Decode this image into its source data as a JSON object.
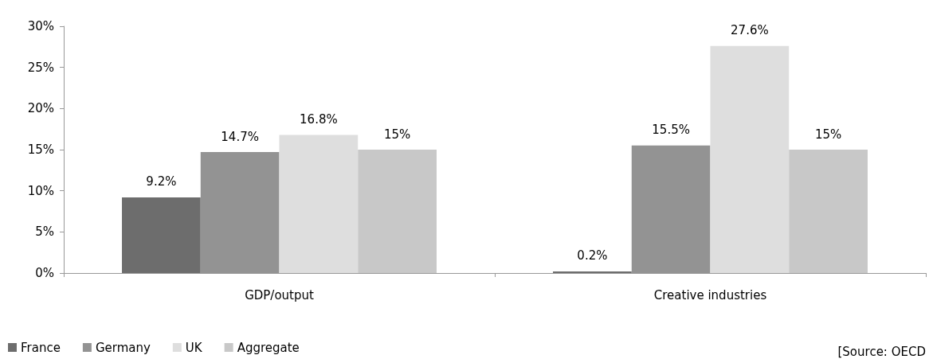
{
  "chart_data": {
    "type": "bar",
    "categories": [
      "GDP/output",
      "Creative industries"
    ],
    "series": [
      {
        "name": "France",
        "color": "#6d6d6d",
        "values": [
          9.2,
          0.2
        ],
        "value_labels": [
          "9.2%",
          "0.2%"
        ]
      },
      {
        "name": "Germany",
        "color": "#939393",
        "values": [
          14.7,
          15.5
        ],
        "value_labels": [
          "14.7%",
          "15.5%"
        ]
      },
      {
        "name": "UK",
        "color": "#dedede",
        "values": [
          16.8,
          27.6
        ],
        "value_labels": [
          "16.8%",
          "27.6%"
        ]
      },
      {
        "name": "Aggregate",
        "color": "#c8c8c8",
        "values": [
          15,
          15
        ],
        "value_labels": [
          "15%",
          "15%"
        ]
      }
    ],
    "ylim": [
      0,
      30
    ],
    "yticks": [
      {
        "value": 0,
        "label": "0%"
      },
      {
        "value": 5,
        "label": "5%"
      },
      {
        "value": 10,
        "label": "10%"
      },
      {
        "value": 15,
        "label": "15%"
      },
      {
        "value": 20,
        "label": "20%"
      },
      {
        "value": 25,
        "label": "25%"
      },
      {
        "value": 30,
        "label": "30%"
      }
    ],
    "grid": false,
    "legend": "bottom left",
    "annotations": [
      "[Source: OECD"
    ]
  }
}
